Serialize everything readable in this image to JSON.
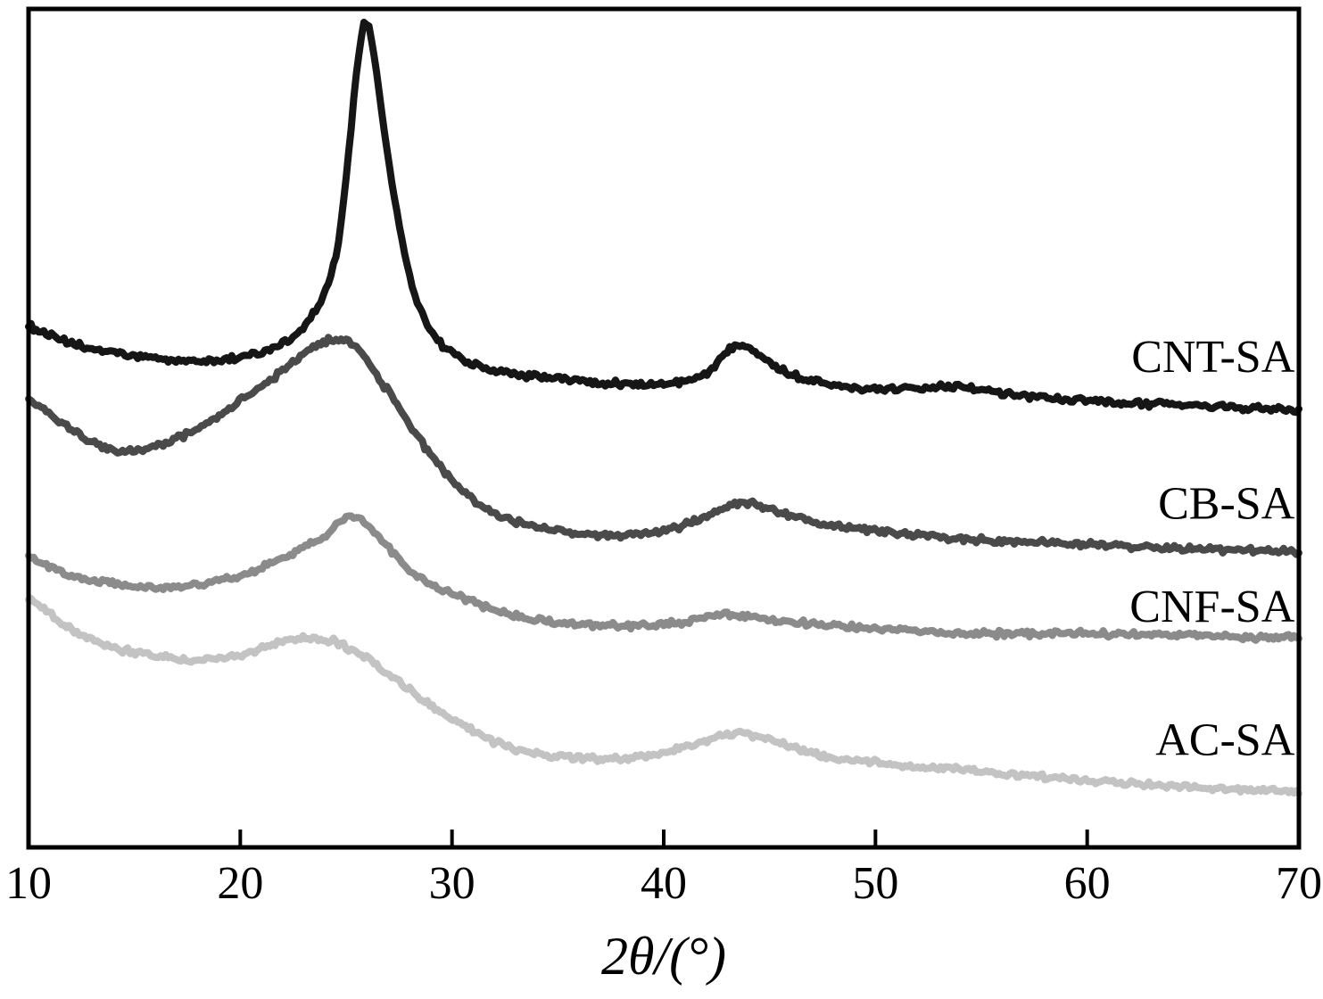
{
  "chart_data": {
    "type": "line",
    "title": "",
    "xlabel": "2θ/(°)",
    "ylabel": "",
    "xlim": [
      10,
      70
    ],
    "ylim": [
      0,
      100
    ],
    "x_ticks": [
      10,
      20,
      30,
      40,
      50,
      60,
      70
    ],
    "grid": false,
    "legend_position": "inline-right",
    "axis_color": "#000000",
    "background_color": "#ffffff",
    "description": "XRD patterns (intensity in arbitrary units, curves vertically offset) of four carbon/sodium-alginate composites",
    "series": [
      {
        "name": "CNT-SA",
        "color": "#161616",
        "peak_2theta": 25.9,
        "secondary_peak_2theta": 43.2,
        "label_x": 69.8,
        "label_u": 58.5,
        "x": [
          10,
          12,
          15,
          18,
          20,
          22,
          23.5,
          24.5,
          25,
          25.5,
          25.9,
          26.3,
          27,
          28,
          29,
          30,
          32,
          35,
          38,
          40,
          42,
          43,
          43.7,
          44.5,
          46,
          48,
          50,
          52,
          54,
          56,
          60,
          65,
          70
        ],
        "y": [
          62.2,
          60.1,
          58.6,
          58.0,
          58.5,
          60.1,
          63.8,
          70.2,
          79.8,
          92.6,
          98.4,
          94.7,
          81.9,
          68.1,
          61.7,
          59.0,
          56.9,
          55.9,
          55.3,
          55.3,
          56.4,
          59.3,
          60.1,
          58.8,
          56.4,
          55.3,
          54.6,
          54.9,
          55.0,
          54.2,
          53.2,
          52.7,
          52.1
        ]
      },
      {
        "name": "CB-SA",
        "color": "#4a4a4a",
        "peak_2theta": 24.6,
        "secondary_peak_2theta": 43.5,
        "label_x": 69.8,
        "label_u": 41.0,
        "x": [
          10,
          12,
          14,
          16,
          18,
          20,
          22,
          23.5,
          24.6,
          25.5,
          27,
          29,
          31,
          33,
          35,
          38,
          40,
          42,
          43.5,
          45,
          47,
          50,
          55,
          60,
          65,
          70
        ],
        "y": [
          53.7,
          50.0,
          47.3,
          47.9,
          50.0,
          53.2,
          56.9,
          59.6,
          60.6,
          59.6,
          54.3,
          46.8,
          41.5,
          38.8,
          37.8,
          37.2,
          37.8,
          39.4,
          41.0,
          40.4,
          38.8,
          37.8,
          36.7,
          36.2,
          35.6,
          35.3
        ]
      },
      {
        "name": "CNF-SA",
        "color": "#8b8b8b",
        "peak_2theta": 25.3,
        "secondary_peak_2theta": 43.0,
        "label_x": 69.8,
        "label_u": 28.7,
        "x": [
          10,
          12,
          14,
          16,
          18,
          20,
          22,
          24,
          25.3,
          26.5,
          28,
          30,
          33,
          36,
          40,
          43,
          45,
          50,
          55,
          60,
          65,
          70
        ],
        "y": [
          34.6,
          32.4,
          31.4,
          30.9,
          31.4,
          32.4,
          34.6,
          37.2,
          39.4,
          37.2,
          33.0,
          30.3,
          27.7,
          26.6,
          26.6,
          27.7,
          27.1,
          26.1,
          25.5,
          25.5,
          25.3,
          25.0
        ]
      },
      {
        "name": "AC-SA",
        "color": "#c3c3c3",
        "peak_2theta": 23.5,
        "secondary_peak_2theta": 43.5,
        "label_x": 69.8,
        "label_u": 12.8,
        "x": [
          10,
          12,
          14,
          16,
          18,
          20,
          22,
          23.5,
          25,
          27,
          29,
          31,
          33,
          35,
          38,
          40,
          42,
          43.5,
          45,
          47,
          50,
          55,
          60,
          65,
          70
        ],
        "y": [
          29.8,
          26.1,
          23.9,
          22.9,
          22.3,
          22.9,
          24.5,
          25.0,
          23.9,
          20.7,
          17.0,
          13.8,
          11.7,
          10.9,
          10.6,
          11.2,
          12.8,
          13.6,
          12.8,
          11.2,
          10.1,
          9.0,
          8.0,
          7.2,
          6.6
        ]
      }
    ]
  }
}
